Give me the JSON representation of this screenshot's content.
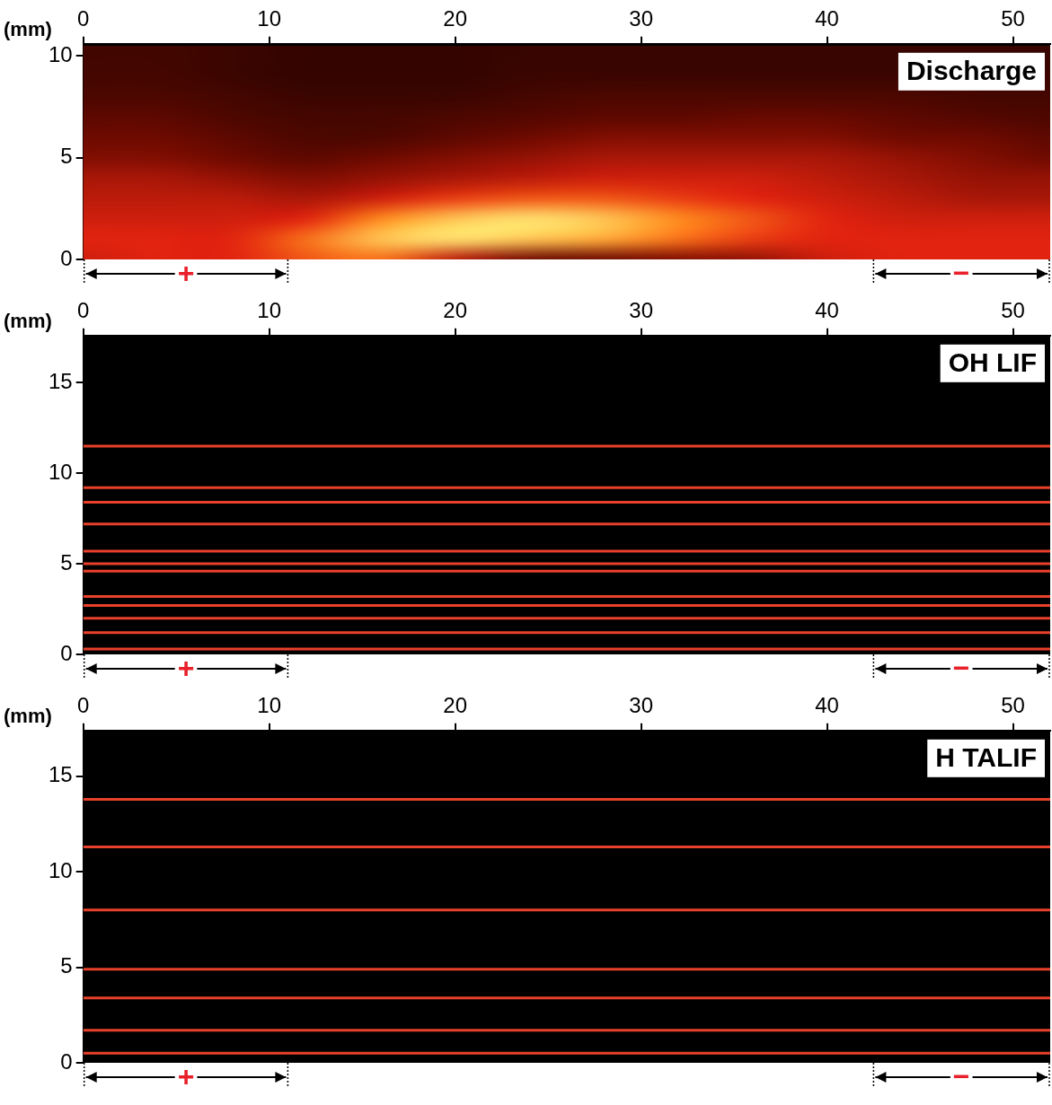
{
  "chart_data": [
    {
      "type": "heatmap",
      "title": "Discharge",
      "y_label": "(mm)",
      "xlim": [
        0,
        52
      ],
      "xticks": [
        0,
        10,
        20,
        30,
        40,
        50
      ],
      "ylim": [
        0,
        10.6
      ],
      "yticks": [
        0,
        5,
        10
      ],
      "grid": false,
      "x": [
        0,
        4,
        8,
        12,
        16,
        20,
        24,
        28,
        32,
        36,
        40,
        44,
        48,
        52
      ],
      "y": [
        0,
        1,
        2,
        3,
        4,
        5,
        6,
        7,
        8,
        9,
        10
      ],
      "cells": [
        [
          0.55,
          0.6,
          0.6,
          0.7,
          0.75,
          0.5,
          0.3,
          0.3,
          0.35,
          0.4,
          0.55,
          0.6,
          0.6,
          0.6
        ],
        [
          0.6,
          0.6,
          0.6,
          0.75,
          0.9,
          0.95,
          0.9,
          0.85,
          0.75,
          0.65,
          0.6,
          0.6,
          0.6,
          0.6
        ],
        [
          0.55,
          0.55,
          0.55,
          0.6,
          0.8,
          0.9,
          0.95,
          0.9,
          0.8,
          0.7,
          0.6,
          0.55,
          0.55,
          0.55
        ],
        [
          0.5,
          0.5,
          0.5,
          0.45,
          0.55,
          0.65,
          0.7,
          0.7,
          0.65,
          0.6,
          0.55,
          0.5,
          0.45,
          0.45
        ],
        [
          0.45,
          0.45,
          0.4,
          0.35,
          0.4,
          0.45,
          0.5,
          0.55,
          0.55,
          0.55,
          0.5,
          0.45,
          0.4,
          0.4
        ],
        [
          0.35,
          0.35,
          0.3,
          0.25,
          0.3,
          0.35,
          0.4,
          0.45,
          0.45,
          0.45,
          0.45,
          0.4,
          0.35,
          0.3
        ],
        [
          0.3,
          0.3,
          0.25,
          0.2,
          0.2,
          0.25,
          0.3,
          0.35,
          0.35,
          0.35,
          0.35,
          0.3,
          0.3,
          0.25
        ],
        [
          0.25,
          0.25,
          0.2,
          0.18,
          0.18,
          0.2,
          0.22,
          0.25,
          0.25,
          0.28,
          0.28,
          0.25,
          0.22,
          0.2
        ],
        [
          0.2,
          0.2,
          0.18,
          0.15,
          0.15,
          0.15,
          0.18,
          0.2,
          0.2,
          0.2,
          0.2,
          0.2,
          0.18,
          0.18
        ],
        [
          0.18,
          0.18,
          0.15,
          0.13,
          0.13,
          0.13,
          0.15,
          0.15,
          0.15,
          0.15,
          0.15,
          0.15,
          0.15,
          0.15
        ],
        [
          0.17,
          0.17,
          0.15,
          0.13,
          0.13,
          0.13,
          0.14,
          0.14,
          0.14,
          0.14,
          0.14,
          0.14,
          0.14,
          0.14
        ]
      ],
      "annotations": [
        {
          "label": "+",
          "x": [
            0,
            11
          ]
        },
        {
          "label": "−",
          "x": [
            42.5,
            52
          ]
        }
      ]
    },
    {
      "type": "hlines",
      "title": "OH LIF",
      "y_label": "(mm)",
      "xlim": [
        0,
        52
      ],
      "xticks": [
        0,
        10,
        20,
        30,
        40,
        50
      ],
      "ylim": [
        0,
        17.6
      ],
      "yticks": [
        0,
        5,
        10,
        15
      ],
      "grid": false,
      "values": [
        0.3,
        1.2,
        2.0,
        2.7,
        3.2,
        4.6,
        5.0,
        5.7,
        7.2,
        8.4,
        9.2,
        11.5
      ],
      "color": "#e8402a",
      "annotations": [
        {
          "label": "+",
          "x": [
            0,
            11
          ]
        },
        {
          "label": "−",
          "x": [
            42.5,
            52
          ]
        }
      ]
    },
    {
      "type": "hlines",
      "title": "H TALIF",
      "y_label": "(mm)",
      "xlim": [
        0,
        52
      ],
      "xticks": [
        0,
        10,
        20,
        30,
        40,
        50
      ],
      "ylim": [
        0,
        17.4
      ],
      "yticks": [
        0,
        5,
        10,
        15
      ],
      "grid": false,
      "values": [
        0.5,
        1.7,
        3.4,
        4.9,
        8.0,
        11.3,
        13.8
      ],
      "color": "#e8402a",
      "annotations": [
        {
          "label": "+",
          "x": [
            0,
            11
          ]
        },
        {
          "label": "−",
          "x": [
            42.5,
            52
          ]
        }
      ]
    }
  ]
}
